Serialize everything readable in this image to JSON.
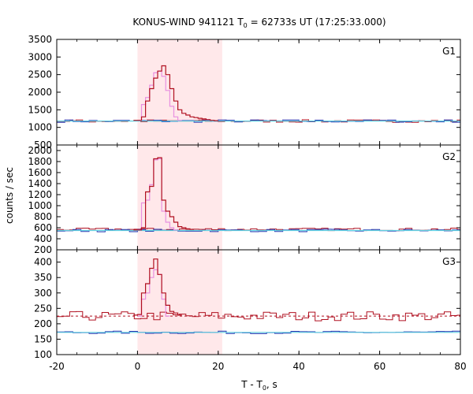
{
  "chart_data": {
    "type": "line",
    "title": "KONUS-WIND 941121 T",
    "title_sub": "0",
    "title_rest": " = 62733s UT (17:25:33.000)",
    "xlabel": "T - T",
    "xlabel_sub": "0",
    "xlabel_rest": ", s",
    "ylabel": "counts / sec",
    "xlim": [
      -20,
      80
    ],
    "xticks": [
      "-20",
      "0",
      "20",
      "40",
      "60",
      "80"
    ],
    "xtick_values": [
      -20,
      0,
      20,
      40,
      60,
      80
    ],
    "shaded_interval": [
      0,
      21
    ],
    "colors": {
      "shade": "#ffe8ea",
      "red": "#b01020",
      "blue": "#2030b0",
      "pink": "#e890e0",
      "cyan": "#60d0e0"
    },
    "panels": [
      {
        "name": "G1",
        "ylim": [
          500,
          3500
        ],
        "yticks": [
          "500",
          "1000",
          "1500",
          "2000",
          "2500",
          "3000",
          "3500"
        ],
        "ytick_values": [
          500,
          1000,
          1500,
          2000,
          2500,
          3000,
          3500
        ],
        "background_blue": 1180,
        "background_red": 1180,
        "red_pulse": [
          [
            -1,
            1200
          ],
          [
            0,
            1200
          ],
          [
            1,
            1300
          ],
          [
            2,
            1750
          ],
          [
            3,
            2100
          ],
          [
            4,
            2400
          ],
          [
            5,
            2600
          ],
          [
            6,
            2750
          ],
          [
            7,
            2500
          ],
          [
            8,
            2100
          ],
          [
            9,
            1750
          ],
          [
            10,
            1500
          ],
          [
            11,
            1400
          ],
          [
            12,
            1350
          ],
          [
            13,
            1300
          ],
          [
            14,
            1280
          ],
          [
            15,
            1260
          ],
          [
            16,
            1240
          ],
          [
            17,
            1220
          ],
          [
            18,
            1200
          ],
          [
            19,
            1190
          ]
        ],
        "pink_pulse": [
          [
            0,
            1200
          ],
          [
            1,
            1650
          ],
          [
            2,
            1850
          ],
          [
            3,
            2200
          ],
          [
            4,
            2550
          ],
          [
            5,
            2600
          ],
          [
            6,
            2450
          ],
          [
            7,
            2050
          ],
          [
            8,
            1600
          ],
          [
            9,
            1300
          ],
          [
            10,
            1200
          ]
        ]
      },
      {
        "name": "G2",
        "ylim": [
          200,
          2100
        ],
        "yticks": [
          "200",
          "400",
          "600",
          "800",
          "1000",
          "1200",
          "1400",
          "1600",
          "1800",
          "2000"
        ],
        "ytick_values": [
          200,
          400,
          600,
          800,
          1000,
          1200,
          1400,
          1600,
          1800,
          2000
        ],
        "background_blue": 550,
        "background_red": 570,
        "red_pulse": [
          [
            -1,
            560
          ],
          [
            0,
            560
          ],
          [
            1,
            600
          ],
          [
            2,
            1250
          ],
          [
            3,
            1350
          ],
          [
            4,
            1850
          ],
          [
            5,
            1870
          ],
          [
            6,
            1100
          ],
          [
            7,
            900
          ],
          [
            8,
            800
          ],
          [
            9,
            700
          ],
          [
            10,
            620
          ],
          [
            11,
            600
          ],
          [
            12,
            580
          ],
          [
            13,
            570
          ]
        ],
        "pink_pulse": [
          [
            0,
            560
          ],
          [
            1,
            1050
          ],
          [
            2,
            1100
          ],
          [
            3,
            1380
          ],
          [
            4,
            1830
          ],
          [
            5,
            1850
          ],
          [
            6,
            900
          ],
          [
            7,
            700
          ],
          [
            8,
            600
          ],
          [
            9,
            560
          ]
        ]
      },
      {
        "name": "G3",
        "ylim": [
          100,
          440
        ],
        "yticks": [
          "100",
          "150",
          "200",
          "250",
          "300",
          "350",
          "400"
        ],
        "ytick_values": [
          100,
          150,
          200,
          250,
          300,
          350,
          400
        ],
        "background_blue": 172,
        "background_red": 225,
        "red_pulse": [
          [
            -1,
            228
          ],
          [
            0,
            230
          ],
          [
            1,
            300
          ],
          [
            2,
            330
          ],
          [
            3,
            380
          ],
          [
            4,
            410
          ],
          [
            5,
            360
          ],
          [
            6,
            300
          ],
          [
            7,
            260
          ],
          [
            8,
            240
          ],
          [
            9,
            235
          ],
          [
            10,
            228
          ]
        ],
        "pink_pulse": [
          [
            0,
            225
          ],
          [
            1,
            280
          ],
          [
            2,
            300
          ],
          [
            3,
            350
          ],
          [
            4,
            375
          ],
          [
            5,
            360
          ],
          [
            6,
            280
          ],
          [
            7,
            225
          ]
        ]
      }
    ]
  }
}
